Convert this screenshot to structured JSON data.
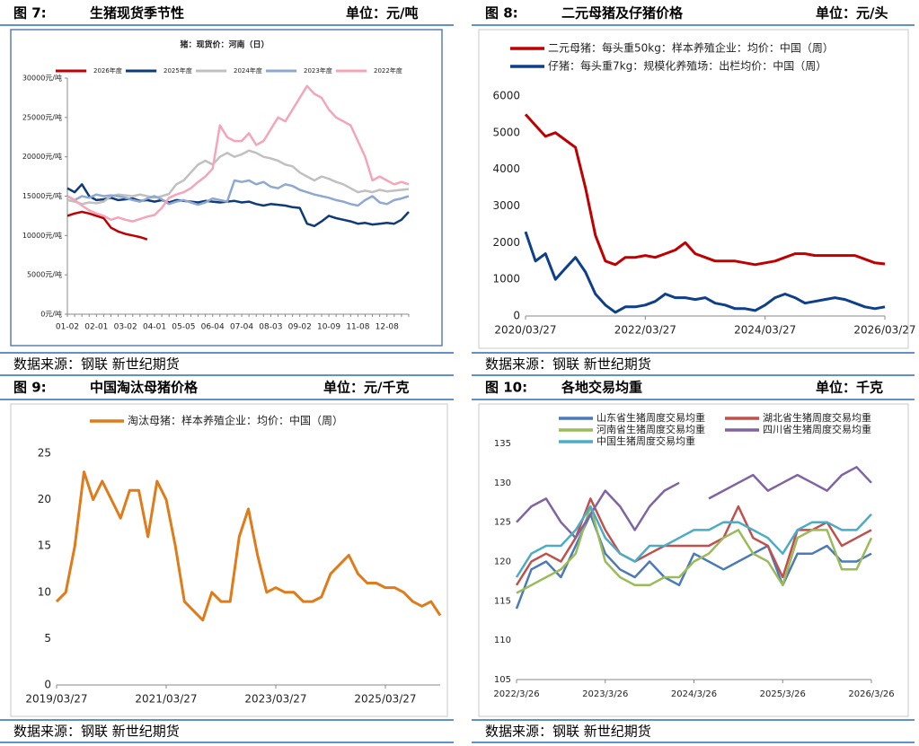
{
  "chart_data": [
    {
      "type": "line",
      "figure": "图 7:",
      "title": "生猪现货季节性",
      "unit": "单位：元/吨",
      "source": "数据来源：钢联  新世纪期货",
      "subtitle": "猪：现货价：河南（日）",
      "grid": false,
      "categories": [
        "01-02",
        null,
        null,
        null,
        "02-01",
        null,
        null,
        null,
        "03-02",
        null,
        null,
        null,
        "04-01",
        null,
        null,
        null,
        "05-05",
        null,
        null,
        null,
        "06-04",
        null,
        null,
        null,
        "07-04",
        null,
        null,
        null,
        "08-03",
        null,
        null,
        null,
        "09-02",
        null,
        null,
        null,
        "10-09",
        null,
        null,
        null,
        "11-08",
        null,
        null,
        null,
        "12-08",
        null,
        null,
        null
      ],
      "ylim": [
        0,
        30000
      ],
      "yticks": [
        {
          "value": 0,
          "label": "0元/吨"
        },
        {
          "value": 5000,
          "label": "5000元/吨"
        },
        {
          "value": 10000,
          "label": "10000元/吨"
        },
        {
          "value": 15000,
          "label": "15000元/吨"
        },
        {
          "value": 20000,
          "label": "20000元/吨"
        },
        {
          "value": 25000,
          "label": "25000元/吨"
        },
        {
          "value": 30000,
          "label": "30000元/吨"
        }
      ],
      "series": [
        {
          "name": "2026年度",
          "color": "#c00000",
          "values": [
            12500,
            12800,
            13000,
            12800,
            12500,
            12200,
            11000,
            10500,
            10200,
            10000,
            9800,
            9500,
            null,
            null,
            null,
            null,
            null,
            null,
            null,
            null,
            null,
            null,
            null,
            null,
            null,
            null,
            null,
            null,
            null,
            null,
            null,
            null,
            null,
            null,
            null,
            null,
            null,
            null,
            null,
            null,
            null,
            null,
            null,
            null,
            null,
            null,
            null,
            null
          ]
        },
        {
          "name": "2025年度",
          "color": "#0e3a7a",
          "values": [
            16000,
            15500,
            16500,
            15000,
            14500,
            14600,
            14800,
            14500,
            14600,
            14700,
            14400,
            14500,
            14300,
            14500,
            14200,
            14500,
            14400,
            14300,
            14200,
            14400,
            14300,
            14200,
            14300,
            14400,
            14200,
            14300,
            14000,
            13800,
            14000,
            13900,
            13800,
            13600,
            13500,
            11500,
            11200,
            11800,
            12500,
            12200,
            12000,
            11800,
            11500,
            11600,
            11400,
            11500,
            11600,
            11500,
            12000,
            13000
          ]
        },
        {
          "name": "2024年度",
          "color": "#c0c0c0",
          "values": [
            14500,
            14300,
            14000,
            14200,
            14100,
            14300,
            15000,
            15200,
            15100,
            15000,
            15200,
            15000,
            14800,
            15000,
            15300,
            16500,
            17000,
            18000,
            19000,
            19500,
            19000,
            20000,
            20500,
            20000,
            20300,
            20800,
            20500,
            20000,
            19800,
            19500,
            19000,
            18800,
            18000,
            17500,
            17000,
            17500,
            17200,
            16800,
            16500,
            16000,
            15500,
            15700,
            15500,
            15800,
            15600,
            15700,
            15800,
            15900
          ]
        },
        {
          "name": "2023年度",
          "color": "#8fa8d0",
          "values": [
            15000,
            14500,
            15000,
            14800,
            15200,
            15000,
            15100,
            15000,
            14800,
            14500,
            14300,
            14700,
            15000,
            14600,
            14000,
            14300,
            14500,
            14200,
            13900,
            14200,
            14700,
            14500,
            14300,
            17000,
            16800,
            17000,
            16500,
            16800,
            16200,
            16000,
            16500,
            16300,
            15800,
            15500,
            15200,
            15000,
            14800,
            14500,
            14300,
            14000,
            13800,
            14500,
            15000,
            14200,
            14000,
            14500,
            14700,
            15000
          ]
        },
        {
          "name": "2022年度",
          "color": "#f4a5b8",
          "values": [
            15000,
            14500,
            13800,
            13200,
            12800,
            12500,
            12000,
            12300,
            12000,
            11800,
            12100,
            12400,
            12600,
            13500,
            14800,
            15200,
            15500,
            16000,
            16800,
            17500,
            18500,
            24000,
            22500,
            22000,
            22000,
            23000,
            21500,
            22000,
            23500,
            25000,
            24500,
            26000,
            27500,
            29000,
            28000,
            27500,
            26000,
            25000,
            24500,
            24000,
            22000,
            20000,
            17000,
            17500,
            17000,
            16500,
            16800,
            16500
          ]
        }
      ]
    },
    {
      "type": "line",
      "figure": "图 8:",
      "title": "二元母猪及仔猪价格",
      "unit": "单位：元/头",
      "source": "数据来源：钢联  新世纪期货",
      "grid": false,
      "categories": [
        "2020/03/27",
        "2020/05/27",
        "2020/07/27",
        "2020/09/27",
        "2020/11/27",
        "2021/01/27",
        "2021/03/27",
        "2021/05/27",
        "2021/07/27",
        "2021/09/27",
        "2021/11/27",
        "2022/01/27",
        "2022/03/27",
        "2022/05/27",
        "2022/07/27",
        "2022/09/27",
        "2022/11/27",
        "2023/01/27",
        "2023/03/27",
        "2023/05/27",
        "2023/07/27",
        "2023/09/27",
        "2023/11/27",
        "2024/01/27",
        "2024/03/27",
        "2024/05/27",
        "2024/07/27",
        "2024/09/27",
        "2024/11/27",
        "2025/01/27",
        "2025/03/27",
        "2025/05/27",
        "2025/07/27",
        "2025/09/27",
        "2025/11/27",
        "2026/01/27",
        "2026/03/27"
      ],
      "xticks": [
        "2020/03/27",
        "2022/03/27",
        "2024/03/27",
        "2026/03/27"
      ],
      "ylim": [
        0,
        6000
      ],
      "yticks": [
        0,
        1000,
        2000,
        3000,
        4000,
        5000,
        6000
      ],
      "series": [
        {
          "name": "二元母猪：每头重50kg：样本养殖企业：均价：中国（周）",
          "color": "#c00000",
          "values": [
            5500,
            5200,
            4900,
            5000,
            4800,
            4600,
            3500,
            2200,
            1500,
            1400,
            1600,
            1600,
            1650,
            1600,
            1700,
            1800,
            2000,
            1700,
            1600,
            1500,
            1500,
            1500,
            1450,
            1400,
            1450,
            1500,
            1600,
            1700,
            1700,
            1650,
            1650,
            1650,
            1650,
            1650,
            1550,
            1450,
            1420
          ]
        },
        {
          "name": "仔猪：每头重7kg：规模化养殖场：出栏均价：中国（周）",
          "color": "#0e3f8a",
          "values": [
            2300,
            1500,
            1700,
            1000,
            1300,
            1600,
            1200,
            600,
            300,
            100,
            250,
            250,
            300,
            400,
            600,
            500,
            500,
            450,
            500,
            350,
            300,
            200,
            200,
            150,
            300,
            500,
            600,
            500,
            350,
            400,
            450,
            500,
            450,
            350,
            250,
            200,
            250
          ]
        }
      ]
    },
    {
      "type": "line",
      "figure": "图 9:",
      "title": "中国淘汰母猪价格",
      "unit": "单位：元/千克",
      "source": "数据来源：钢联  新世纪期货",
      "grid": false,
      "categories": [
        "2019/03/27",
        "2019/05/27",
        "2019/07/27",
        "2019/09/27",
        "2019/11/27",
        "2020/01/27",
        "2020/03/27",
        "2020/05/27",
        "2020/07/27",
        "2020/09/27",
        "2020/11/27",
        "2021/01/27",
        "2021/03/27",
        "2021/05/27",
        "2021/07/27",
        "2021/09/27",
        "2021/11/27",
        "2022/01/27",
        "2022/03/27",
        "2022/05/27",
        "2022/07/27",
        "2022/09/27",
        "2022/11/27",
        "2023/01/27",
        "2023/03/27",
        "2023/05/27",
        "2023/07/27",
        "2023/09/27",
        "2023/11/27",
        "2024/01/27",
        "2024/03/27",
        "2024/05/27",
        "2024/07/27",
        "2024/09/27",
        "2024/11/27",
        "2025/01/27",
        "2025/03/27",
        "2025/05/27",
        "2025/07/27",
        "2025/09/27",
        "2025/11/27",
        "2026/01/27",
        "2026/03/27"
      ],
      "xticks": [
        "2019/03/27",
        "2021/03/27",
        "2023/03/27",
        "2025/03/27"
      ],
      "ylim": [
        0,
        25
      ],
      "yticks": [
        0,
        5,
        10,
        15,
        20,
        25
      ],
      "series": [
        {
          "name": "淘汰母猪：样本养殖企业：均价：中国（周）",
          "color": "#e07b1a",
          "values": [
            9,
            10,
            15,
            23,
            20,
            22,
            20,
            18,
            21,
            21,
            16,
            22,
            20,
            15,
            9,
            8,
            7,
            10,
            9,
            9,
            16,
            19,
            14,
            10,
            10.5,
            10,
            10,
            9,
            9,
            9.5,
            12,
            13,
            14,
            12,
            11,
            11,
            10.5,
            10.5,
            10,
            9,
            8.5,
            9,
            7.5
          ]
        }
      ]
    },
    {
      "type": "line",
      "figure": "图 10:",
      "title": "各地交易均重",
      "unit": "单位：千克",
      "source": "数据来源：钢联  新世纪期货",
      "grid": false,
      "categories": [
        "2022/3/26",
        "2022/5/26",
        "2022/7/26",
        "2022/9/26",
        "2022/11/26",
        "2023/1/26",
        "2023/3/26",
        "2023/5/26",
        "2023/7/26",
        "2023/9/26",
        "2023/11/26",
        "2024/1/26",
        "2024/3/26",
        "2024/5/26",
        "2024/7/26",
        "2024/9/26",
        "2024/11/26",
        "2025/1/26",
        "2025/3/26",
        "2025/5/26",
        "2025/7/26",
        "2025/9/26",
        "2025/11/26",
        "2026/1/26",
        "2026/3/26"
      ],
      "xticks": [
        "2022/3/26",
        "2023/3/26",
        "2024/3/26",
        "2025/3/26",
        "2026/3/26"
      ],
      "ylim": [
        105,
        135
      ],
      "yticks": [
        105,
        110,
        115,
        120,
        125,
        130,
        135
      ],
      "series": [
        {
          "name": "山东省生猪周度交易均重",
          "color": "#4a7ab8",
          "values": [
            114,
            119,
            120,
            118,
            122,
            126,
            121,
            119,
            118,
            120,
            118,
            117,
            121,
            120,
            119,
            120,
            121,
            122,
            117,
            121,
            121,
            122,
            120,
            120,
            121
          ]
        },
        {
          "name": "湖北省生猪周度交易均重",
          "color": "#c0504d",
          "values": [
            117,
            120,
            121,
            120,
            123,
            128,
            124,
            121,
            120,
            121,
            122,
            122,
            122,
            122,
            123,
            127,
            123,
            122,
            118,
            124,
            124,
            125,
            122,
            123,
            124
          ]
        },
        {
          "name": "河南省生猪周度交易均重",
          "color": "#9bbb59",
          "values": [
            116,
            117,
            118,
            119,
            121,
            127,
            120,
            118,
            117,
            117,
            118,
            118,
            120,
            121,
            123,
            124,
            121,
            120,
            117,
            123,
            124,
            124,
            119,
            119,
            123
          ]
        },
        {
          "name": "四川省生猪周度交易均重",
          "color": "#8064a2",
          "values": [
            125,
            127,
            128,
            125,
            123,
            126,
            129,
            127,
            124,
            127,
            129,
            130,
            null,
            128,
            129,
            130,
            131,
            129,
            130,
            131,
            130,
            129,
            131,
            132,
            130
          ]
        },
        {
          "name": "中国生猪周度交易均重",
          "color": "#4bacc6",
          "values": [
            118,
            121,
            122,
            122,
            124,
            127,
            123,
            121,
            120,
            122,
            122,
            123,
            124,
            124,
            125,
            125,
            124,
            123,
            121,
            124,
            125,
            125,
            124,
            124,
            126
          ]
        }
      ]
    }
  ]
}
